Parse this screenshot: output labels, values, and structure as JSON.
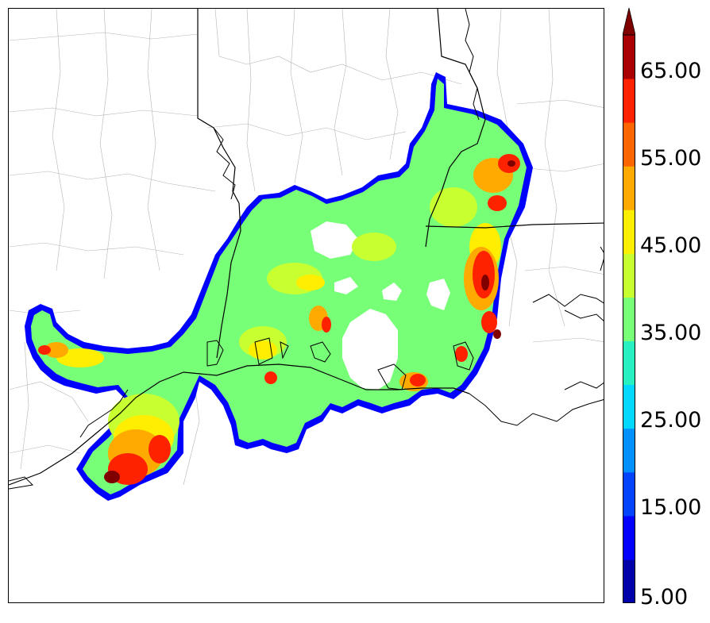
{
  "map": {
    "type": "filled-contour",
    "region": "Gulf Coast (Texas / Louisiana / Mississippi)",
    "legend_position": "right"
  },
  "colorbar": {
    "tick_labels": [
      "65.00",
      "55.00",
      "45.00",
      "35.00",
      "25.00",
      "15.00",
      "5.00"
    ],
    "levels": [
      5,
      10,
      15,
      20,
      25,
      30,
      35,
      40,
      45,
      50,
      55,
      60,
      65,
      70
    ],
    "colors": [
      "#0000aa",
      "#0000ff",
      "#0044ff",
      "#0090ff",
      "#00d8ff",
      "#28f0c0",
      "#78ff78",
      "#c8ff30",
      "#ffee00",
      "#ffaa00",
      "#ff6600",
      "#ff2200",
      "#aa0000",
      "#800000"
    ],
    "extend": "max"
  }
}
